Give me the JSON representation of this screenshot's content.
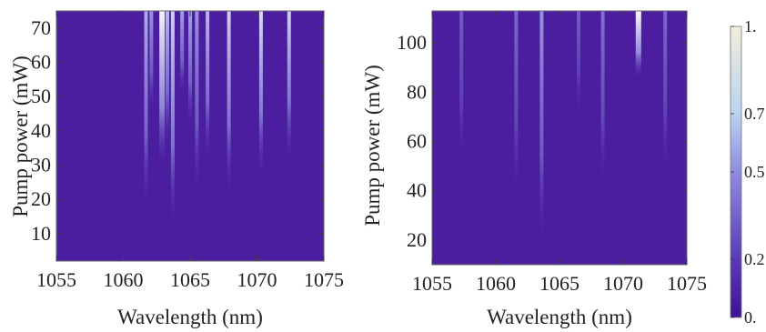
{
  "chart_data": [
    {
      "type": "heatmap",
      "xlabel": "Wavelength (nm)",
      "ylabel": "Pump power (mW)",
      "xlim": [
        1055,
        1075
      ],
      "ylim": [
        2,
        75
      ],
      "x_ticks": [
        "1055",
        "1060",
        "1065",
        "1070",
        "1075"
      ],
      "y_ticks": [
        "10",
        "20",
        "30",
        "40",
        "50",
        "60",
        "70"
      ],
      "y_tick_values": [
        10,
        20,
        30,
        40,
        50,
        60,
        70
      ],
      "colormap": [
        "#4a1e9f",
        "#8a82dc",
        "#ffffff"
      ],
      "lines": [
        {
          "wavelength": 1061.7,
          "start_power": 15,
          "peak": 0.65
        },
        {
          "wavelength": 1062.1,
          "start_power": 45,
          "peak": 0.55
        },
        {
          "wavelength": 1062.9,
          "start_power": 28,
          "peak": 0.95
        },
        {
          "wavelength": 1063.3,
          "start_power": 35,
          "peak": 0.7
        },
        {
          "wavelength": 1063.7,
          "start_power": 10,
          "peak": 0.8
        },
        {
          "wavelength": 1064.4,
          "start_power": 50,
          "peak": 0.6
        },
        {
          "wavelength": 1065.0,
          "start_power": 40,
          "peak": 0.6
        },
        {
          "wavelength": 1065.5,
          "start_power": 20,
          "peak": 0.55
        },
        {
          "wavelength": 1066.3,
          "start_power": 30,
          "peak": 0.7
        },
        {
          "wavelength": 1067.9,
          "start_power": 20,
          "peak": 0.8
        },
        {
          "wavelength": 1070.3,
          "start_power": 25,
          "peak": 0.85
        },
        {
          "wavelength": 1072.4,
          "start_power": 30,
          "peak": 0.8
        }
      ]
    },
    {
      "type": "heatmap",
      "xlabel": "Wavelength (nm)",
      "ylabel": "Pump power (mW)",
      "xlim": [
        1055,
        1075
      ],
      "ylim": [
        10,
        113
      ],
      "x_ticks": [
        "1055",
        "1060",
        "1065",
        "1070",
        "1075"
      ],
      "y_ticks": [
        "20",
        "40",
        "60",
        "80",
        "100"
      ],
      "y_tick_values": [
        20,
        40,
        60,
        80,
        100
      ],
      "colormap": [
        "#4a1e9f",
        "#8a82dc",
        "#ffffff"
      ],
      "lines": [
        {
          "wavelength": 1057.3,
          "start_power": 50,
          "peak": 0.3
        },
        {
          "wavelength": 1061.6,
          "start_power": 35,
          "peak": 0.35
        },
        {
          "wavelength": 1063.6,
          "start_power": 15,
          "peak": 0.55
        },
        {
          "wavelength": 1066.5,
          "start_power": 70,
          "peak": 0.3
        },
        {
          "wavelength": 1068.4,
          "start_power": 40,
          "peak": 0.4
        },
        {
          "wavelength": 1071.2,
          "start_power": 85,
          "peak": 1.0
        },
        {
          "wavelength": 1073.3,
          "start_power": 45,
          "peak": 0.35
        }
      ]
    }
  ],
  "colorbar": {
    "ticks": [
      "1.",
      "0.7",
      "0.5",
      "0.2",
      "0."
    ],
    "tick_values": [
      1.0,
      0.7,
      0.5,
      0.2,
      0.0
    ]
  }
}
